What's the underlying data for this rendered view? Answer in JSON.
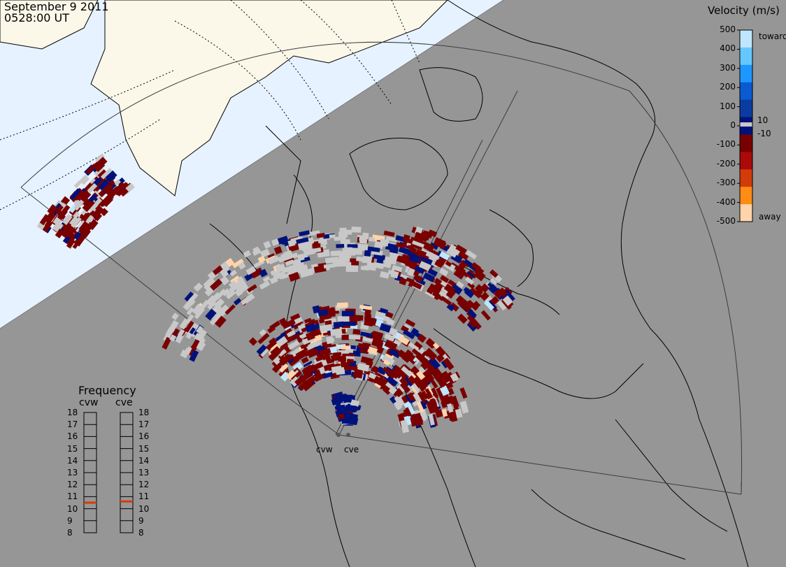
{
  "header": {
    "date": "September  9 2011",
    "time": "0528:00 UT"
  },
  "velocity_scale": {
    "title": "Velocity (m/s)",
    "ticks": [
      "500",
      "400",
      "300",
      "200",
      "100",
      "0",
      "-100",
      "-200",
      "-300",
      "-400",
      "-500"
    ],
    "inner_ticks": [
      "10",
      "-10"
    ],
    "toward_label": "toward",
    "away_label": "away",
    "colors": [
      "#bfe6ff",
      "#64c8ff",
      "#1e96ff",
      "#0a5ad2",
      "#0a3ca0",
      "#00127a",
      "#780000",
      "#aa0a0a",
      "#d23c0a",
      "#ff8c14",
      "#ffd4aa"
    ]
  },
  "frequency": {
    "title": "Frequency",
    "radars": [
      {
        "name": "cvw",
        "value": 10.5
      },
      {
        "name": "cve",
        "value": 10.6
      }
    ],
    "ticks": [
      "18",
      "17",
      "16",
      "15",
      "14",
      "13",
      "12",
      "11",
      "10",
      "9",
      "8"
    ]
  },
  "sites": [
    {
      "label": "cvw"
    },
    {
      "label": "cve"
    }
  ],
  "colors": {
    "night": "#969696",
    "day": "#fbf7e9",
    "ocean": "#e6f2ff",
    "ground_scatter": "#c8c8c8"
  }
}
